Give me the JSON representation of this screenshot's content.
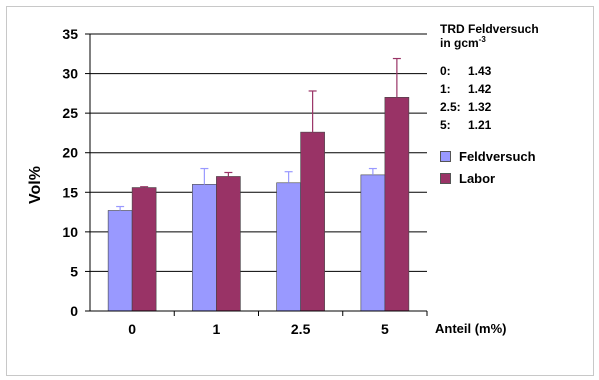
{
  "chart_data": {
    "type": "bar",
    "categories": [
      "0",
      "1",
      "2.5",
      "5"
    ],
    "series": [
      {
        "name": "Feldversuch",
        "color": "#9999ff",
        "values": [
          12.7,
          16.0,
          16.2,
          17.2
        ],
        "errors": [
          0.5,
          2.0,
          1.4,
          0.8
        ]
      },
      {
        "name": "Labor",
        "color": "#993366",
        "values": [
          15.6,
          17.0,
          22.6,
          27.0
        ],
        "errors": [
          0.1,
          0.5,
          5.2,
          4.9
        ]
      }
    ],
    "xlabel": "Anteil (m%)",
    "ylabel": "Vol%",
    "ylim": [
      0,
      35
    ],
    "yticks": [
      0,
      5,
      10,
      15,
      20,
      25,
      30,
      35
    ],
    "grid": true,
    "legend": "right"
  },
  "annotation": {
    "title": "TRD Feldversuch",
    "unit_prefix": "in gcm",
    "unit_exp": "-3",
    "rows": [
      {
        "key": "0:",
        "value": "1.43"
      },
      {
        "key": "1:",
        "value": "1.42"
      },
      {
        "key": "2.5:",
        "value": "1.32"
      },
      {
        "key": "5:",
        "value": "1.21"
      }
    ]
  }
}
